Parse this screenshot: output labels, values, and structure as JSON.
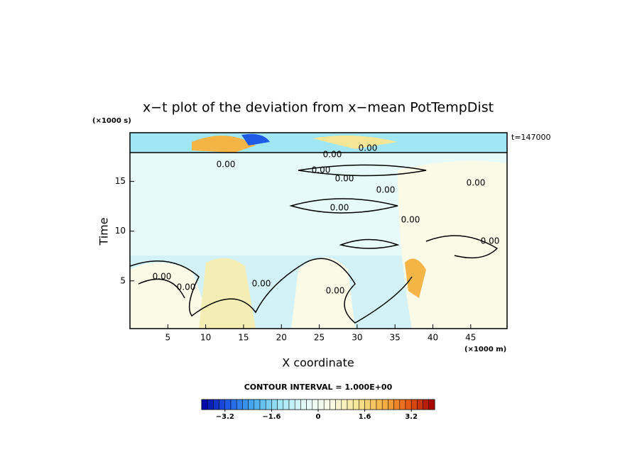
{
  "chart_data": {
    "type": "contour",
    "title": "x−t plot of the deviation from x−mean PotTempDist",
    "x_label": "X coordinate",
    "x_unit": "(×1000 m)",
    "y_label": "Time",
    "y_unit": "(×1000 s)",
    "time_label": "t=147000",
    "contour_interval": "CONTOUR INTERVAL = 1.000E+00",
    "contour_label": "0.00",
    "xlim": [
      0,
      49.8
    ],
    "xticks": [
      5,
      10,
      15,
      20,
      25,
      30,
      35,
      40,
      45
    ],
    "ylim": [
      0.2,
      19.9
    ],
    "yticks": [
      5,
      10,
      15
    ],
    "colorbar": {
      "lim": [
        -4,
        4
      ],
      "ticks": [
        {
          "value": -3.2,
          "label": "−3.2"
        },
        {
          "value": -1.6,
          "label": "−1.6"
        },
        0,
        1.6,
        3.2
      ],
      "colors": [
        "#0000a0",
        "#1e5ae6",
        "#46aaf0",
        "#a0e6f5",
        "#e6fafa",
        "#fafae6",
        "#f5e696",
        "#f5b446",
        "#e65a14",
        "#a00000"
      ]
    }
  }
}
